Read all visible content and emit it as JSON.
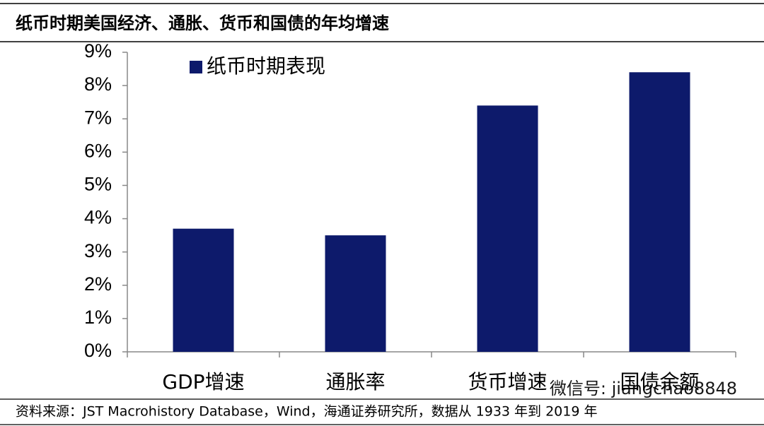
{
  "chart_data": {
    "type": "bar",
    "title": "纸币时期美国经济、通胀、货币和国债的年均增速",
    "categories": [
      "GDP增速",
      "通胀率",
      "货币增速",
      "国债余额"
    ],
    "series": [
      {
        "name": "纸币时期表现",
        "color": "#0d1a6b",
        "values": [
          3.7,
          3.5,
          7.4,
          8.4
        ]
      }
    ],
    "ylim": [
      0,
      9
    ],
    "yticks": [
      {
        "value": 0,
        "label": "0%"
      },
      {
        "value": 1,
        "label": "1%"
      },
      {
        "value": 2,
        "label": "2%"
      },
      {
        "value": 3,
        "label": "3%"
      },
      {
        "value": 4,
        "label": "4%"
      },
      {
        "value": 5,
        "label": "5%"
      },
      {
        "value": 6,
        "label": "6%"
      },
      {
        "value": 7,
        "label": "7%"
      },
      {
        "value": 8,
        "label": "8%"
      },
      {
        "value": 9,
        "label": "9%"
      }
    ],
    "legend": "upper-left",
    "source": "资料来源：JST Macrohistory Database，Wind，海通证券研究所，数据从 1933 年到 2019 年",
    "watermark": "微信号: jiangchao8848"
  }
}
